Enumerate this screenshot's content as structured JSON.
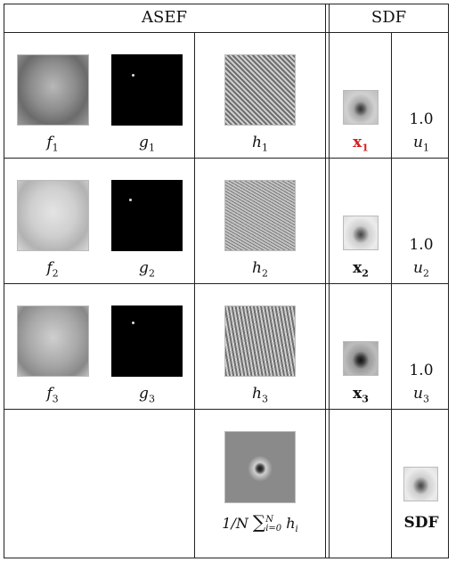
{
  "headers": {
    "asef": "ASEF",
    "sdf": "SDF"
  },
  "rows": [
    {
      "f": "f",
      "g": "g",
      "h": "h",
      "x": "x",
      "u": "u",
      "idx": "1",
      "weight": "1.0"
    },
    {
      "f": "f",
      "g": "g",
      "h": "h",
      "x": "x",
      "u": "u",
      "idx": "2",
      "weight": "1.0"
    },
    {
      "f": "f",
      "g": "g",
      "h": "h",
      "x": "x",
      "u": "u",
      "idx": "3",
      "weight": "1.0"
    }
  ],
  "summary": {
    "prefix": "1/N ",
    "sigma": "∑",
    "sup": "N",
    "sub": "i=0",
    "term": " h",
    "term_sub": "i",
    "sdf_label": "SDF"
  }
}
